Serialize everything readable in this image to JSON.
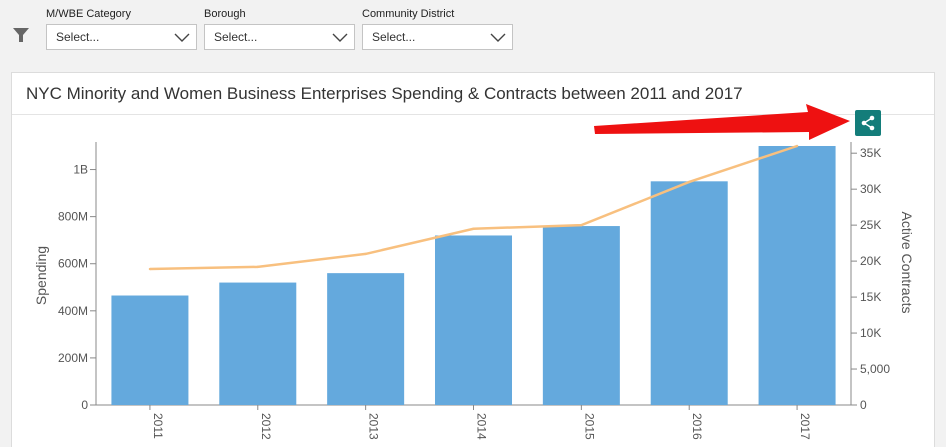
{
  "filters": [
    {
      "label": "M/WBE Category",
      "value": "Select..."
    },
    {
      "label": "Borough",
      "value": "Select..."
    },
    {
      "label": "Community District",
      "value": "Select..."
    }
  ],
  "card": {
    "title": "NYC Minority and Women Business Enterprises Spending & Contracts between 2011 and 2017"
  },
  "colors": {
    "bar": "#64a9dd",
    "line": "#f8c07f",
    "share_button": "#137d7a",
    "annotation_arrow": "#ee1111"
  },
  "chart_data": {
    "type": "bar",
    "categories": [
      "2011",
      "2012",
      "2013",
      "2014",
      "2015",
      "2016",
      "2017"
    ],
    "series": [
      {
        "type": "bar",
        "axis": "left",
        "values": [
          465000000,
          520000000,
          560000000,
          720000000,
          760000000,
          950000000,
          1100000000
        ]
      },
      {
        "type": "line",
        "axis": "right",
        "values": [
          18900,
          19200,
          21000,
          24500,
          25000,
          31000,
          36000
        ]
      }
    ],
    "ylabel": "Spending",
    "y2label": "Active Contracts",
    "ylim": [
      0,
      1100000000
    ],
    "y2lim": [
      0,
      36000
    ],
    "yticks": [
      0,
      200000000,
      400000000,
      600000000,
      800000000,
      1000000000
    ],
    "ytick_labels": [
      "0",
      "200M",
      "400M",
      "600M",
      "800M",
      "1B"
    ],
    "y2ticks": [
      0,
      5000,
      10000,
      15000,
      20000,
      25000,
      30000,
      35000
    ],
    "y2tick_labels": [
      "0",
      "5,000",
      "10K",
      "15K",
      "20K",
      "25K",
      "30K",
      "35K"
    ],
    "grid": false,
    "legend": "none"
  }
}
